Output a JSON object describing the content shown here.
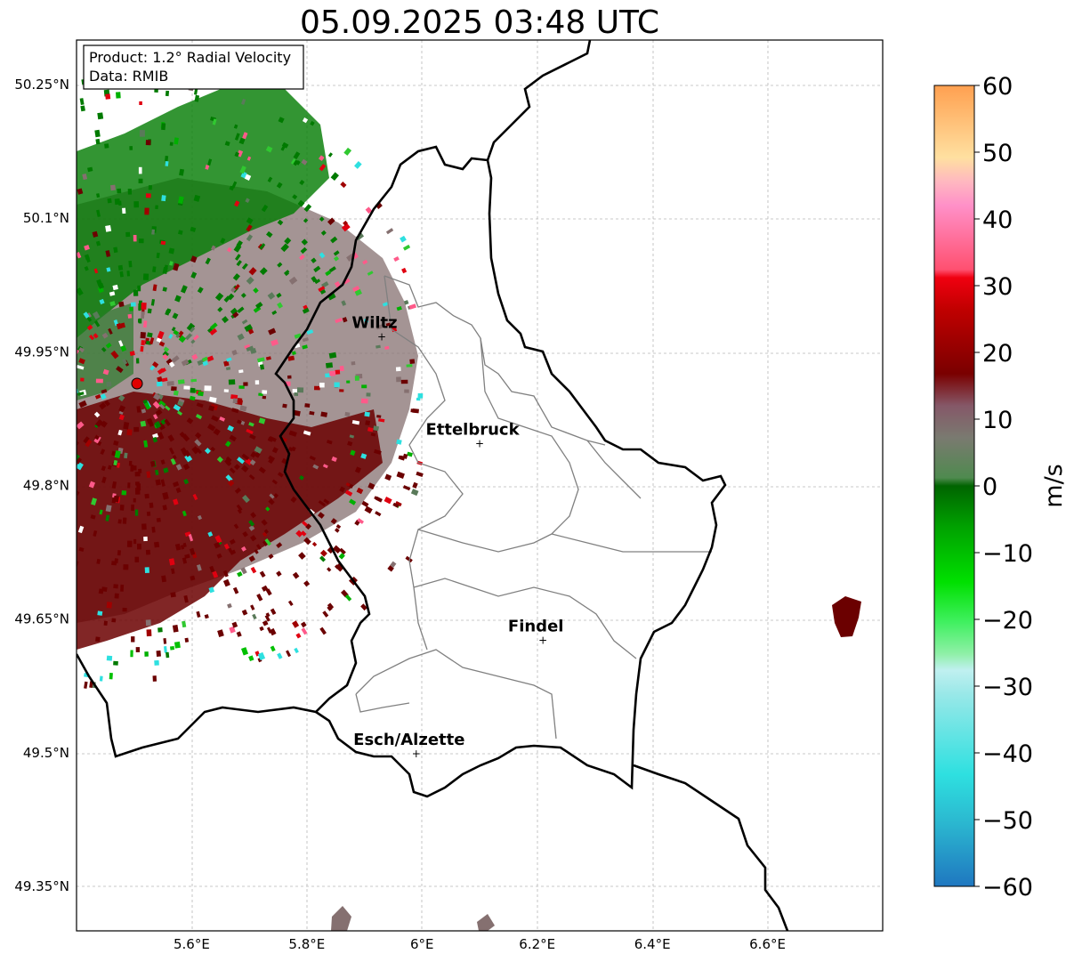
{
  "title": "05.09.2025 03:48 UTC",
  "info_box": {
    "line1": "Product: 1.2° Radial Velocity",
    "line2": "Data: RMIB"
  },
  "latitude_ticks": [
    "50.25°N",
    "50.1°N",
    "49.95°N",
    "49.8°N",
    "49.65°N",
    "49.5°N",
    "49.35°N"
  ],
  "longitude_ticks": [
    "5.6°E",
    "5.8°E",
    "6°E",
    "6.2°E",
    "6.4°E",
    "6.6°E"
  ],
  "cities": [
    {
      "name": "Wiltz",
      "lon": 5.93,
      "lat": 49.968
    },
    {
      "name": "Ettelbruck",
      "lon": 6.1,
      "lat": 49.848
    },
    {
      "name": "Findel",
      "lon": 6.21,
      "lat": 49.627
    },
    {
      "name": "Esch/Alzette",
      "lon": 5.99,
      "lat": 49.5
    }
  ],
  "radar_site": {
    "lon": 5.505,
    "lat": 49.914
  },
  "colorbar": {
    "unit": "m/s",
    "ticks": [
      "60",
      "50",
      "40",
      "30",
      "20",
      "10",
      "0",
      "−10",
      "−20",
      "−30",
      "−40",
      "−50",
      "−60"
    ],
    "min": -60,
    "max": 60
  },
  "map_extent": {
    "lon_min": 5.4,
    "lon_max": 6.8,
    "lat_min": 49.3,
    "lat_max": 50.3
  },
  "colors": {
    "border": "#000000",
    "canton_lines": "#808080",
    "radar_site": "#e00000",
    "receding_dark": "#6b0000",
    "approaching_green": "#007a00",
    "near_zero": "#857070"
  }
}
